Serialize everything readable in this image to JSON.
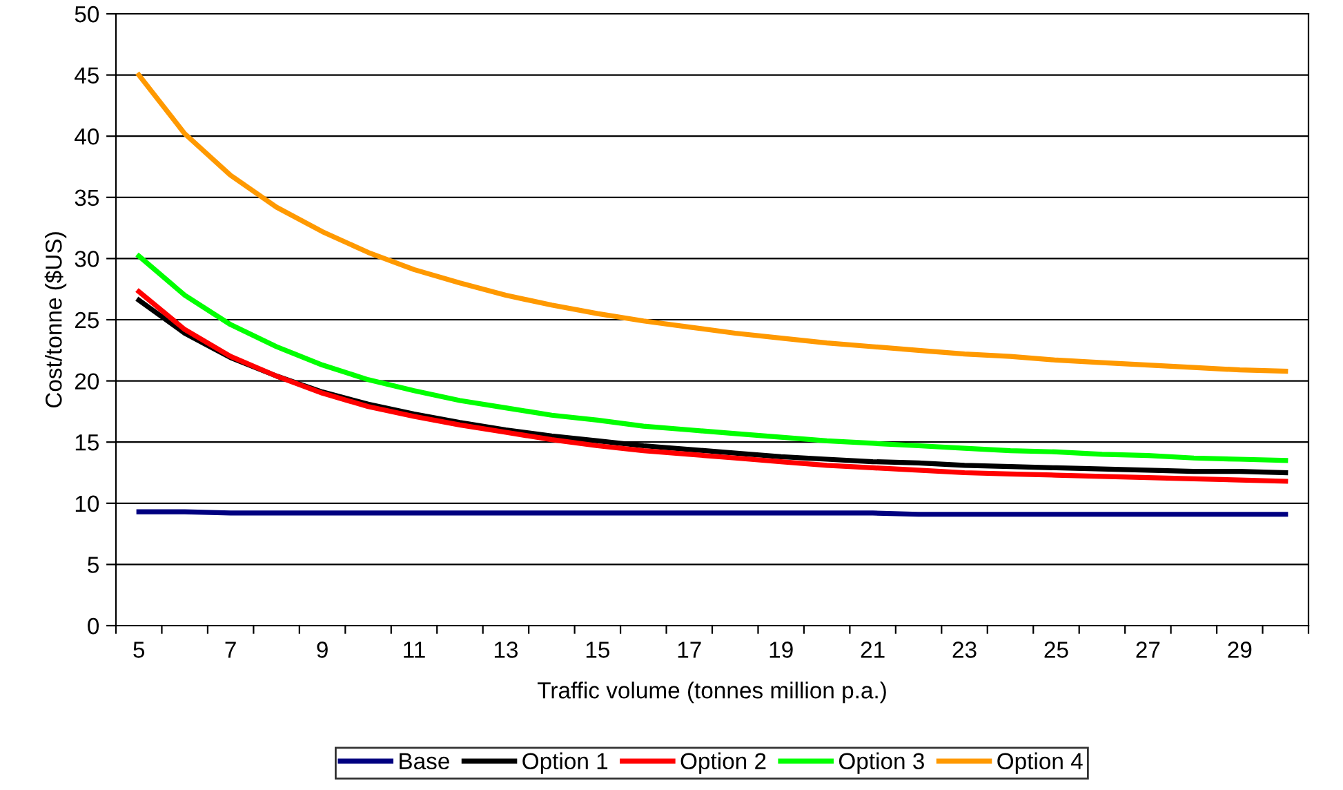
{
  "chart_data": {
    "type": "line",
    "xlabel": "Traffic volume (tonnes million p.a.)",
    "ylabel": "Cost/tonne ($US)",
    "categories": [
      "5",
      null,
      "7",
      null,
      "9",
      null,
      "11",
      null,
      "13",
      null,
      "15",
      null,
      "17",
      null,
      "19",
      null,
      "21",
      null,
      "23",
      null,
      "25",
      null,
      "27",
      null,
      "29",
      null
    ],
    "series": [
      {
        "name": "Base",
        "color": "#000080",
        "values": [
          9.3,
          9.3,
          9.2,
          9.2,
          9.2,
          9.2,
          9.2,
          9.2,
          9.2,
          9.2,
          9.2,
          9.2,
          9.2,
          9.2,
          9.2,
          9.2,
          9.2,
          9.1,
          9.1,
          9.1,
          9.1,
          9.1,
          9.1,
          9.1,
          9.1,
          9.1
        ]
      },
      {
        "name": "Option 1",
        "color": "#000000",
        "values": [
          26.6,
          23.9,
          21.9,
          20.4,
          19.1,
          18.1,
          17.3,
          16.6,
          16.0,
          15.5,
          15.1,
          14.7,
          14.4,
          14.1,
          13.8,
          13.6,
          13.4,
          13.3,
          13.1,
          13.0,
          12.9,
          12.8,
          12.7,
          12.6,
          12.6,
          12.5
        ]
      },
      {
        "name": "Option 2",
        "color": "#ff0000",
        "values": [
          27.3,
          24.2,
          22.0,
          20.4,
          19.0,
          17.9,
          17.1,
          16.4,
          15.8,
          15.2,
          14.7,
          14.3,
          14.0,
          13.7,
          13.4,
          13.1,
          12.9,
          12.7,
          12.5,
          12.4,
          12.3,
          12.2,
          12.1,
          12.0,
          11.9,
          11.8
        ]
      },
      {
        "name": "Option 3",
        "color": "#00ff00",
        "values": [
          30.2,
          27.0,
          24.6,
          22.8,
          21.3,
          20.1,
          19.2,
          18.4,
          17.8,
          17.2,
          16.8,
          16.3,
          16.0,
          15.7,
          15.4,
          15.1,
          14.9,
          14.7,
          14.5,
          14.3,
          14.2,
          14.0,
          13.9,
          13.7,
          13.6,
          13.5
        ]
      },
      {
        "name": "Option 4",
        "color": "#ff9900",
        "values": [
          45.0,
          40.2,
          36.8,
          34.2,
          32.2,
          30.5,
          29.1,
          28.0,
          27.0,
          26.2,
          25.5,
          24.9,
          24.4,
          23.9,
          23.5,
          23.1,
          22.8,
          22.5,
          22.2,
          22.0,
          21.7,
          21.5,
          21.3,
          21.1,
          20.9,
          20.8
        ]
      }
    ],
    "ylim": [
      0,
      50
    ],
    "yticks": [
      0,
      5,
      10,
      15,
      20,
      25,
      30,
      35,
      40,
      45,
      50
    ],
    "grid": "y",
    "legend": "bottom",
    "marker": "none",
    "line_style": "solid"
  }
}
